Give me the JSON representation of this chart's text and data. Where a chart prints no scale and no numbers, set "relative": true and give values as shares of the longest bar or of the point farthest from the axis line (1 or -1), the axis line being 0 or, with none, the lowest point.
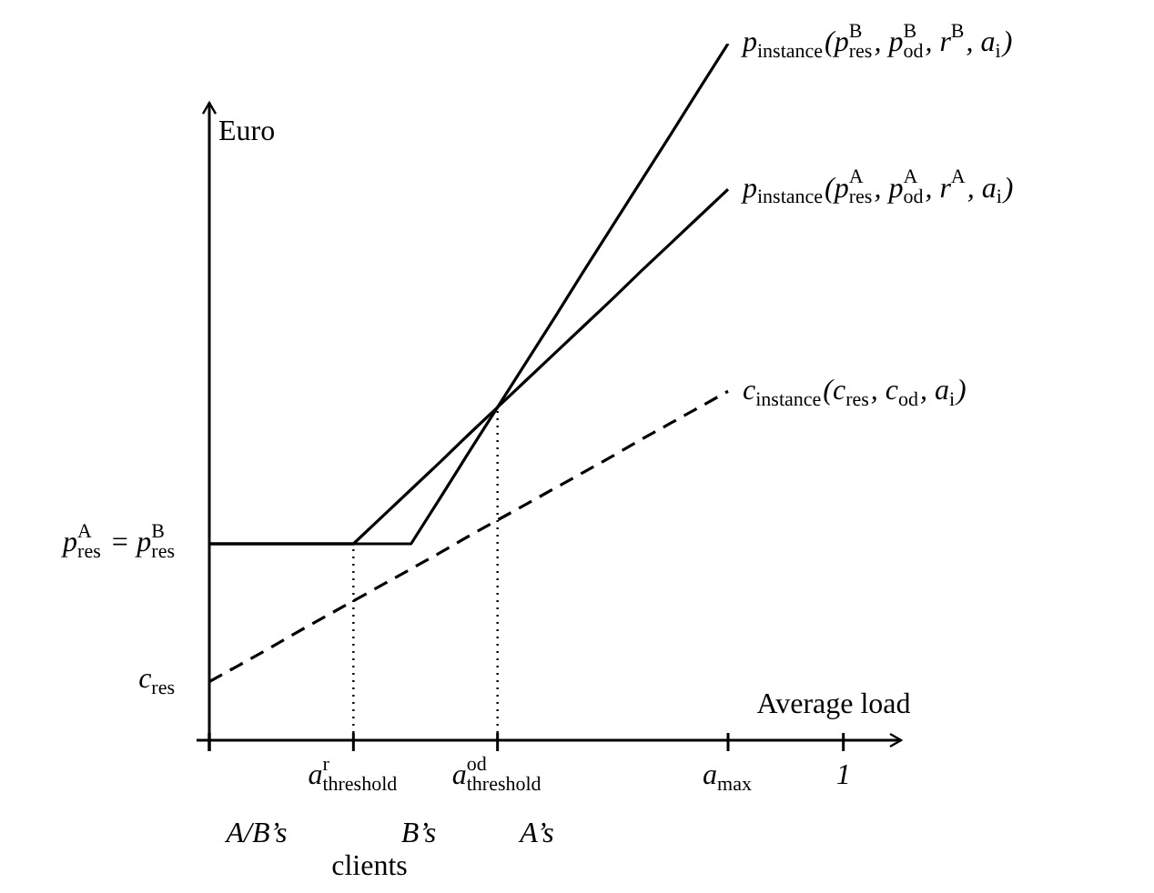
{
  "chart_data": {
    "type": "line",
    "relative": true,
    "xlabel": "Average load",
    "ylabel": "Euro",
    "categories": [
      null,
      null,
      null,
      null,
      null,
      "a$_{threshold}$$^{r}$",
      null,
      null,
      null,
      null,
      "a$_{threshold}$$^{od}$",
      null,
      null,
      null,
      null,
      null,
      null,
      null,
      "a$_{max}$",
      null,
      null,
      null,
      "1",
      null
    ],
    "legend": false,
    "marker": "none",
    "series": [
      {
        "name": "p$_{instance}$(p$_{res}$$^{B}$, p$_{od}$$^{B}$, r$^{B}$, a$_{i}$)",
        "color": "#000000",
        "values": [
          0.282,
          0.282,
          0.282,
          0.282,
          0.282,
          0.282,
          0.282,
          0.282,
          0.347,
          0.413,
          0.478,
          0.543,
          0.608,
          0.674,
          0.739,
          0.804,
          0.869,
          0.935,
          1,
          null,
          null,
          null,
          null,
          null
        ],
        "line_style": "solid"
      },
      {
        "name": "p$_{instance}$(p$_{res}$$^{A}$, p$_{od}$$^{A}$, r$^{A}$, a$_{i}$)",
        "color": "#000000",
        "values": [
          0.282,
          0.282,
          0.282,
          0.282,
          0.282,
          0.282,
          0.321,
          0.36,
          0.399,
          0.439,
          0.478,
          0.517,
          0.556,
          0.595,
          0.634,
          0.674,
          0.713,
          0.752,
          0.791,
          null,
          null,
          null,
          null,
          null
        ],
        "line_style": "solid"
      },
      {
        "name": "c$_{instance}$(c$_{res}$, c$_{od}$, a$_{i}$)",
        "color": "#000000",
        "values": [
          0.084,
          0.107,
          0.13,
          0.154,
          0.177,
          0.2,
          0.223,
          0.246,
          0.269,
          0.293,
          0.316,
          0.339,
          0.362,
          0.385,
          0.408,
          0.432,
          0.455,
          0.478,
          0.501,
          null,
          null,
          null,
          null,
          null
        ],
        "line_style": "dashed"
      }
    ],
    "ref_lines": [
      {
        "axis": "x",
        "value": "a$_{threshold}$$^{r}$",
        "color": "#000000",
        "line_style": "dotted"
      },
      {
        "axis": "x",
        "value": "a$_{threshold}$$^{od}$",
        "color": "#000000",
        "line_style": "dotted"
      }
    ],
    "annotations": [
      "p$_{res}$$^{A}$ = p$_{res}$$^{B}$",
      "c$_{res}$",
      "A/B’s",
      "B’s",
      "A’s",
      "clients"
    ]
  }
}
